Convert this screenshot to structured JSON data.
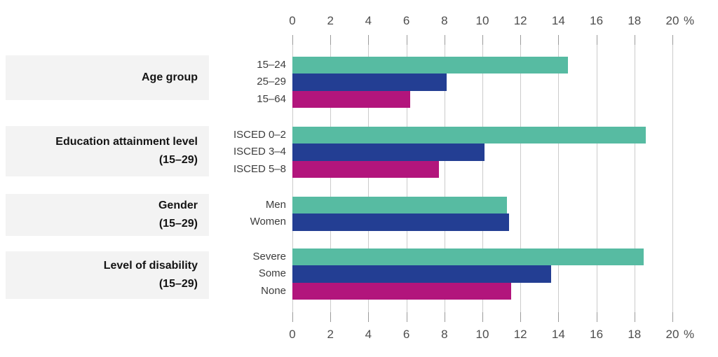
{
  "colors": {
    "teal": "#57bba2",
    "blue": "#233e93",
    "magenta": "#b2157c",
    "gridline": "#cbcbcb",
    "tick": "#9a9a9a",
    "axis_text": "#4d4d4d",
    "label_text": "#3c3c3c",
    "group_box_bg": "#f3f3f3",
    "group_title_text": "#141414"
  },
  "chart_data": {
    "type": "bar",
    "orientation": "horizontal",
    "title": "",
    "xlabel": "",
    "ylabel": "",
    "xlim": [
      0,
      20
    ],
    "axis_ticks": [
      0,
      2,
      4,
      6,
      8,
      10,
      12,
      14,
      16,
      18,
      20
    ],
    "axis_unit": "%",
    "axis_positions": [
      "top",
      "bottom"
    ],
    "grid": true,
    "legend": false,
    "groups": [
      {
        "title": "Age group",
        "subtitle": "",
        "rows": [
          {
            "label": "15–24",
            "value": 14.5,
            "color": "teal"
          },
          {
            "label": "25–29",
            "value": 8.1,
            "color": "blue"
          },
          {
            "label": "15–64",
            "value": 6.2,
            "color": "magenta"
          }
        ]
      },
      {
        "title": "Education attainment level",
        "subtitle": "(15–29)",
        "rows": [
          {
            "label": "ISCED 0–2",
            "value": 18.6,
            "color": "teal"
          },
          {
            "label": "ISCED 3–4",
            "value": 10.1,
            "color": "blue"
          },
          {
            "label": "ISCED 5–8",
            "value": 7.7,
            "color": "magenta"
          }
        ]
      },
      {
        "title": "Gender",
        "subtitle": "(15–29)",
        "rows": [
          {
            "label": "Men",
            "value": 11.3,
            "color": "teal"
          },
          {
            "label": "Women",
            "value": 11.4,
            "color": "blue"
          }
        ]
      },
      {
        "title": "Level of disability",
        "subtitle": "(15–29)",
        "rows": [
          {
            "label": "Severe",
            "value": 18.5,
            "color": "teal"
          },
          {
            "label": "Some",
            "value": 13.6,
            "color": "blue"
          },
          {
            "label": "None",
            "value": 11.5,
            "color": "magenta"
          }
        ]
      }
    ]
  }
}
